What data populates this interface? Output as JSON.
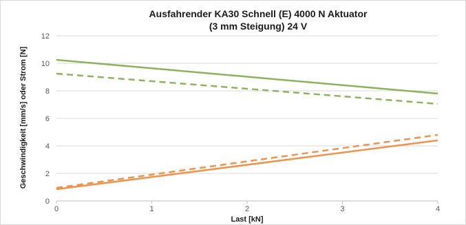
{
  "chart_data": {
    "type": "line",
    "title_line1": "Ausfahrender KA30 Schnell (E) 4000 N Aktuator",
    "title_line2": "(3 mm Steigung) 24 V",
    "xlabel": "Last [kN]",
    "ylabel": "Geschwindigkeit [mm/s] oder Strom [N]",
    "xlim": [
      0,
      4
    ],
    "ylim": [
      0,
      12
    ],
    "xticks": [
      "0",
      "1",
      "2",
      "3",
      "4"
    ],
    "yticks": [
      "0",
      "2",
      "4",
      "6",
      "8",
      "10",
      "12"
    ],
    "grid": true,
    "legend": "none",
    "series": [
      {
        "color": "#8db35a",
        "dash": false,
        "x": [
          0,
          4
        ],
        "y": [
          10.25,
          7.8
        ]
      },
      {
        "color": "#8db35a",
        "dash": true,
        "x": [
          0,
          4
        ],
        "y": [
          9.25,
          7.05
        ]
      },
      {
        "color": "#f0934a",
        "dash": false,
        "x": [
          0,
          4
        ],
        "y": [
          0.85,
          4.4
        ]
      },
      {
        "color": "#f0934a",
        "dash": true,
        "x": [
          0,
          4
        ],
        "y": [
          0.95,
          4.8
        ]
      }
    ]
  }
}
